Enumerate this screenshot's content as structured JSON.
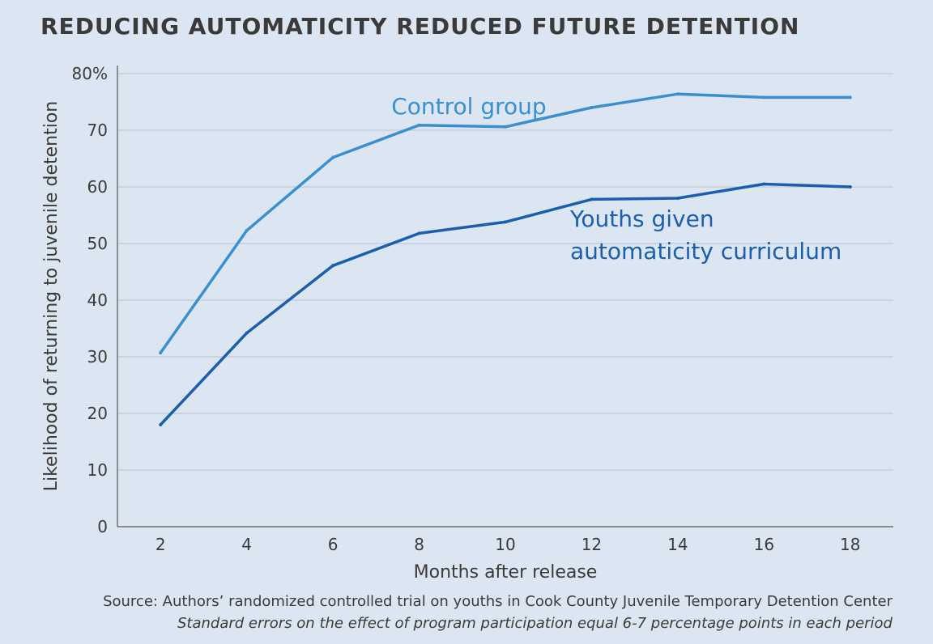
{
  "chart_data": {
    "type": "line",
    "title": "REDUCING AUTOMATICITY REDUCED FUTURE DETENTION",
    "xlabel": "Months after release",
    "ylabel": "Likelihood of returning to juvenile detention",
    "x": [
      2,
      4,
      6,
      8,
      10,
      12,
      14,
      16,
      18
    ],
    "xlim": [
      1,
      19
    ],
    "ylim": [
      0,
      80
    ],
    "yticks": [
      0,
      10,
      20,
      30,
      40,
      50,
      60,
      70,
      80
    ],
    "ytick_labels": [
      "0",
      "10",
      "20",
      "30",
      "40",
      "50",
      "60",
      "70",
      "80%"
    ],
    "xtick_labels": [
      "2",
      "4",
      "6",
      "8",
      "10",
      "12",
      "14",
      "16",
      "18"
    ],
    "grid": true,
    "series": [
      {
        "name": "Control group",
        "label_lines": [
          "Control group"
        ],
        "color": "#3a8fd1",
        "values": [
          30.7,
          52.3,
          65.2,
          70.9,
          70.6,
          74.0,
          76.4,
          75.8,
          75.8
        ]
      },
      {
        "name": "Youths given automaticity curriculum",
        "label_lines": [
          "Youths given",
          "automaticity curriculum"
        ],
        "color": "#1a5eb0",
        "values": [
          18.0,
          34.2,
          46.1,
          51.8,
          53.8,
          57.8,
          58.0,
          60.5,
          60.0
        ]
      }
    ]
  },
  "footer": {
    "source": "Source: Authors’ randomized controlled trial on youths in Cook County Juvenile Temporary Detention Center",
    "note": "Standard errors on the effect of program participation equal 6-7 percentage points in each period"
  }
}
